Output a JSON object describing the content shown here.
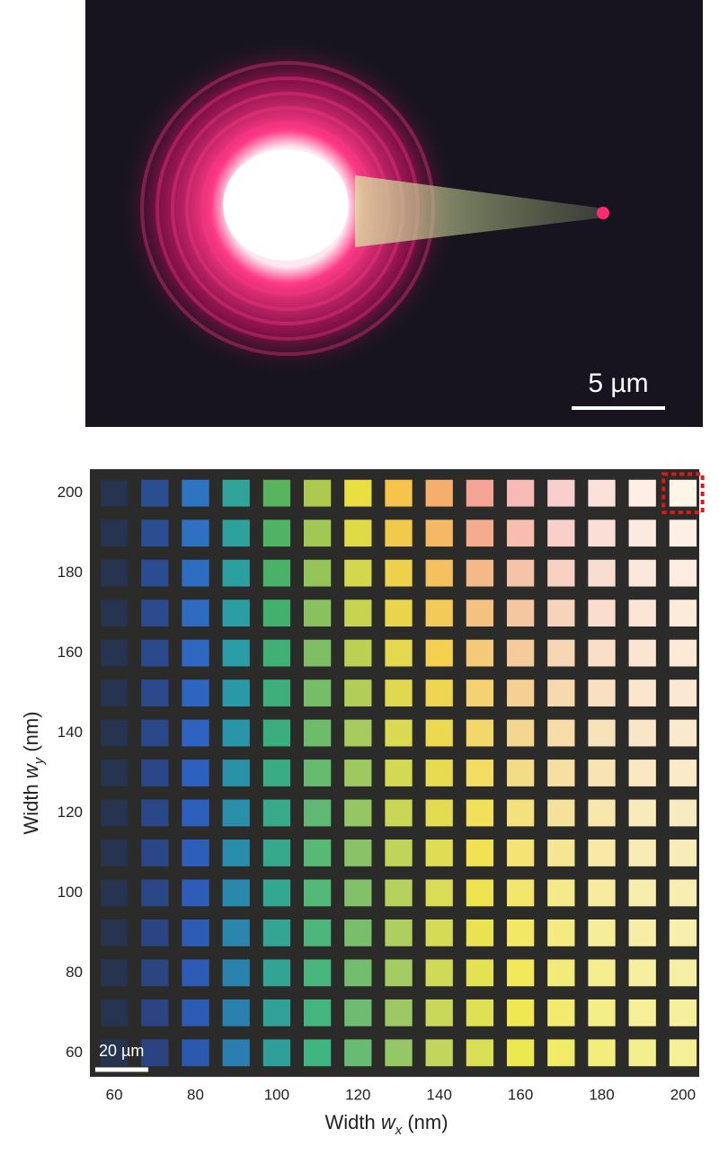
{
  "top_image": {
    "scale_bar": "5 µm"
  },
  "chart_data": {
    "type": "grid",
    "xlabel": [
      "Width ",
      "w",
      "x",
      " (nm)"
    ],
    "ylabel": [
      "Width ",
      "w",
      "y",
      " (nm)"
    ],
    "x": [
      60,
      70,
      80,
      90,
      100,
      110,
      120,
      130,
      140,
      150,
      160,
      170,
      180,
      190,
      200
    ],
    "y": [
      60,
      70,
      80,
      90,
      100,
      110,
      120,
      130,
      140,
      150,
      160,
      170,
      180,
      190,
      200
    ],
    "xlim": [
      54,
      204
    ],
    "ylim": [
      54,
      206
    ],
    "xticks": [
      60,
      80,
      100,
      120,
      140,
      160,
      180,
      200
    ],
    "yticks": [
      60,
      80,
      100,
      120,
      140,
      160,
      180,
      200
    ],
    "highlight": {
      "x": 200,
      "y": 200,
      "color": "#e01818"
    },
    "scale_bar": "20 µm"
  }
}
